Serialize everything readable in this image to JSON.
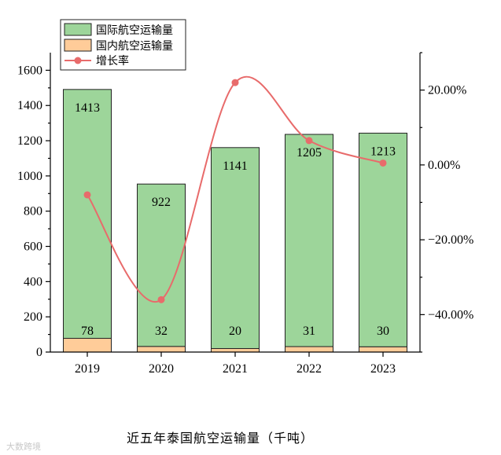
{
  "chart_data": {
    "type": "bar",
    "categories": [
      "2019",
      "2020",
      "2021",
      "2022",
      "2023"
    ],
    "series": [
      {
        "name": "国际航空运输量",
        "values": [
          1413,
          922,
          1141,
          1205,
          1213
        ],
        "color": "#9dd59a",
        "axis": "left"
      },
      {
        "name": "国内航空运输量",
        "values": [
          78,
          32,
          20,
          31,
          30
        ],
        "color": "#ffcc99",
        "axis": "left"
      },
      {
        "name": "增长率",
        "type": "line",
        "values": [
          -8.0,
          -36.0,
          22.0,
          6.5,
          0.5
        ],
        "color": "#e86b6b",
        "axis": "right",
        "unit": "%"
      }
    ],
    "stacked": true,
    "ylim": [
      0,
      1700
    ],
    "yticks": [
      "0",
      "200",
      "400",
      "600",
      "800",
      "1000",
      "1200",
      "1400",
      "1600"
    ],
    "y2lim": [
      -50,
      30
    ],
    "y2ticks": [
      "20.00%",
      "0.00%",
      "-20.00%",
      "-40.00%"
    ],
    "legend": "top-left",
    "grid": false
  },
  "caption": "近五年泰国航空运输量（千吨）",
  "watermark": "大数跨境"
}
